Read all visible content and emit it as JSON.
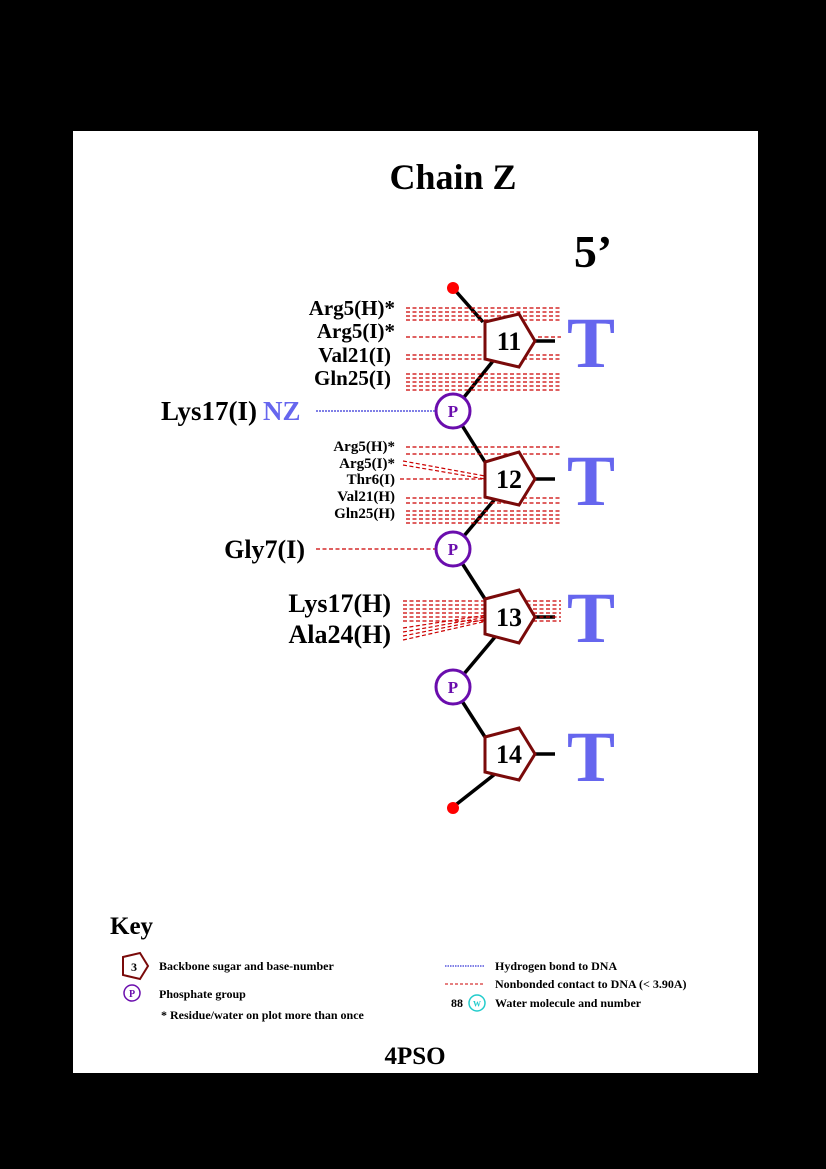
{
  "title": "Chain Z",
  "end_label": "5’",
  "pdb_code": "4PSO",
  "nucleotides": [
    {
      "number": "11",
      "base": "T"
    },
    {
      "number": "12",
      "base": "T"
    },
    {
      "number": "13",
      "base": "T"
    },
    {
      "number": "14",
      "base": "T"
    }
  ],
  "phosphate_symbol": "P",
  "contacts": {
    "n11": [
      "Arg5(H)*",
      "Arg5(I)*",
      "Val21(I)",
      "Gln25(I)"
    ],
    "p1": {
      "residue": "Lys17(I)",
      "atom": "NZ"
    },
    "n12": [
      "Arg5(H)*",
      "Arg5(I)*",
      "Thr6(I)",
      "Val21(H)",
      "Gln25(H)"
    ],
    "p2": {
      "residue": "Gly7(I)"
    },
    "n13": [
      "Lys17(H)",
      "Ala24(H)"
    ]
  },
  "key": {
    "title": "Key",
    "sugar_example_number": "3",
    "sugar_label": "Backbone sugar and base-number",
    "phosphate_label": "Phosphate group",
    "repeat_label": "* Residue/water on plot more than once",
    "hbond_label": "Hydrogen bond to DNA",
    "nonbonded_label": "Nonbonded contact to DNA (< 3.90A)",
    "water_number": "88",
    "water_symbol": "W",
    "water_label": "Water molecule and number"
  },
  "colors": {
    "sugar": "#7a0a0a",
    "phosphate": "#6a0dad",
    "base": "#6666ee",
    "hbond": "#0000cc",
    "nonbonded": "#cc0000",
    "terminus": "#ff0000",
    "water": "#22cccc",
    "atom": "#6666ee"
  }
}
